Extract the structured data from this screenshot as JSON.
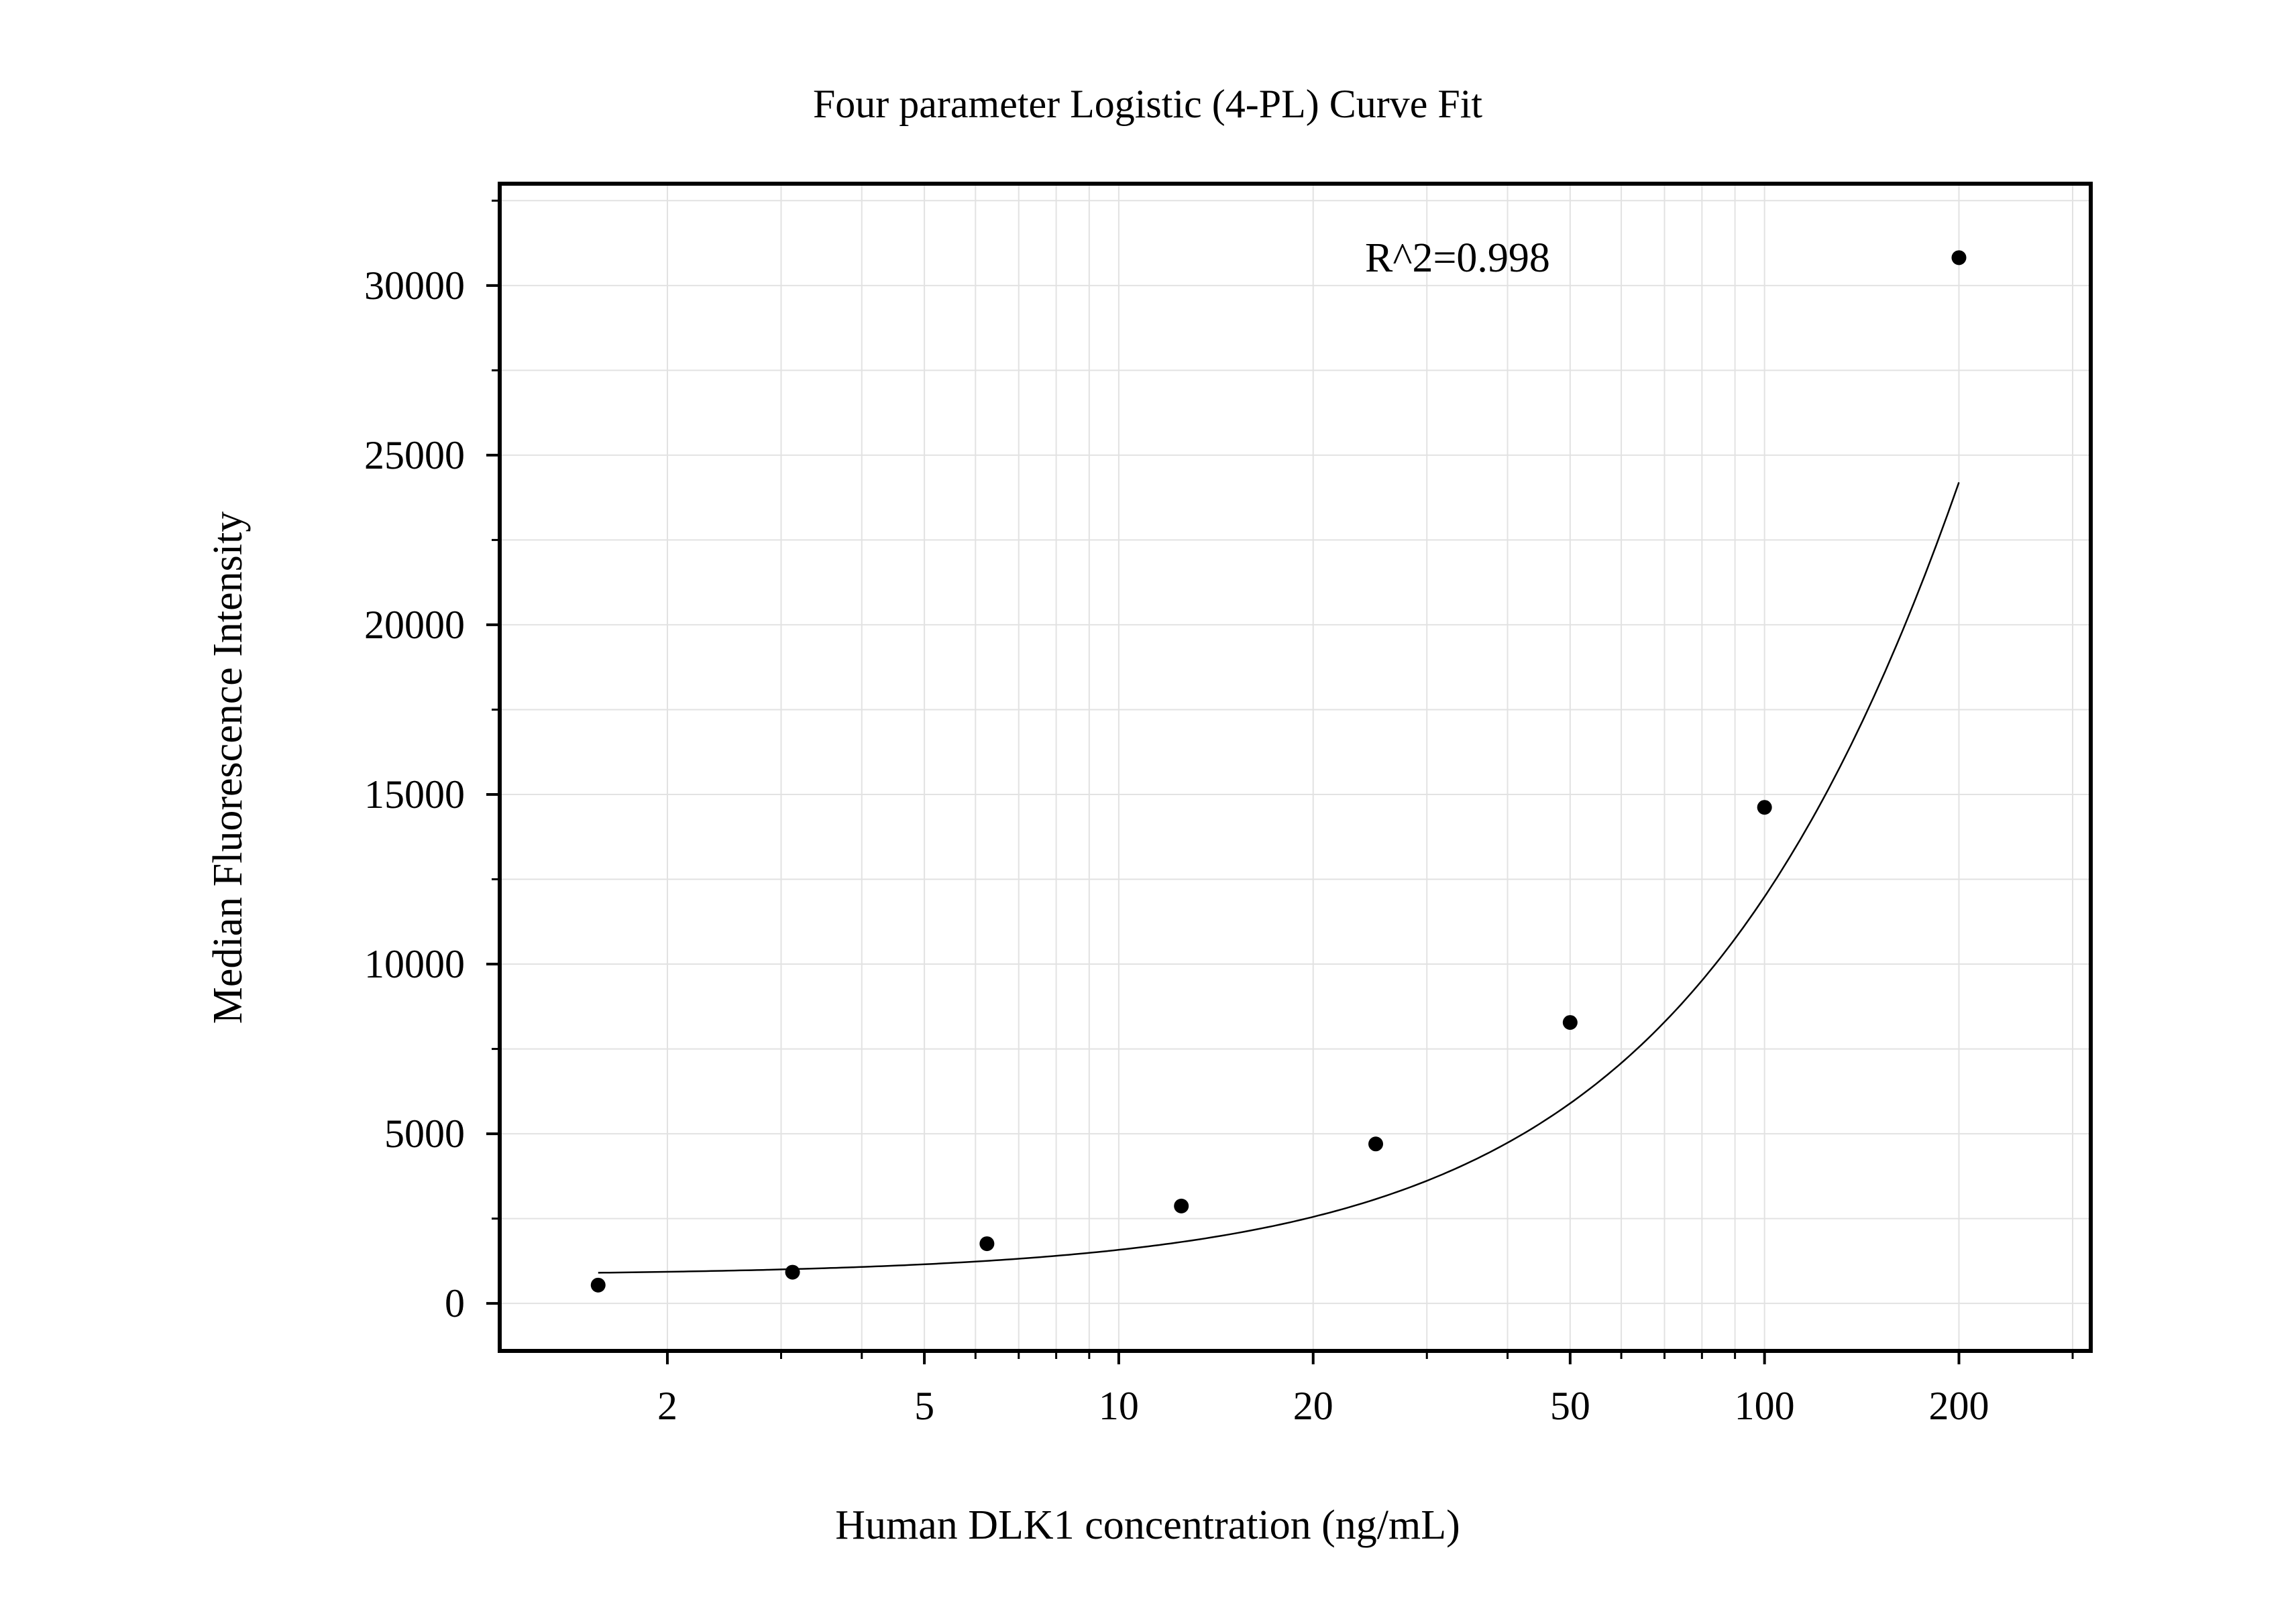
{
  "chart_data": {
    "type": "scatter",
    "title": "Four parameter Logistic (4-PL) Curve Fit",
    "xlabel": "Human DLK1 concentration (ng/mL)",
    "ylabel": "Median Fluorescence Intensity",
    "x_scale": "log",
    "xlim": [
      1.1,
      320
    ],
    "ylim": [
      -1400,
      33000
    ],
    "x_ticks": [
      2,
      5,
      10,
      20,
      50,
      100,
      200
    ],
    "x_tick_labels": [
      "2",
      "5",
      "10",
      "20",
      "50",
      "100",
      "200"
    ],
    "y_ticks": [
      0,
      5000,
      10000,
      15000,
      20000,
      25000,
      30000
    ],
    "y_tick_labels": [
      "0",
      "5000",
      "10000",
      "15000",
      "20000",
      "25000",
      "30000"
    ],
    "grid": true,
    "annotation": "R^2=0.998",
    "series": [
      {
        "type": "scatter",
        "points": [
          {
            "x": 1.5625,
            "y": 540
          },
          {
            "x": 3.125,
            "y": 920
          },
          {
            "x": 6.25,
            "y": 1760
          },
          {
            "x": 12.5,
            "y": 2870
          },
          {
            "x": 25,
            "y": 4700
          },
          {
            "x": 50,
            "y": 8280
          },
          {
            "x": 100,
            "y": 14620
          },
          {
            "x": 200,
            "y": 30820
          }
        ]
      },
      {
        "type": "line",
        "fit": "4PL",
        "x_range": [
          1.5625,
          200
        ],
        "params": {
          "A": 822,
          "D": 150000,
          "C": 813,
          "B": 1.2
        }
      }
    ]
  }
}
